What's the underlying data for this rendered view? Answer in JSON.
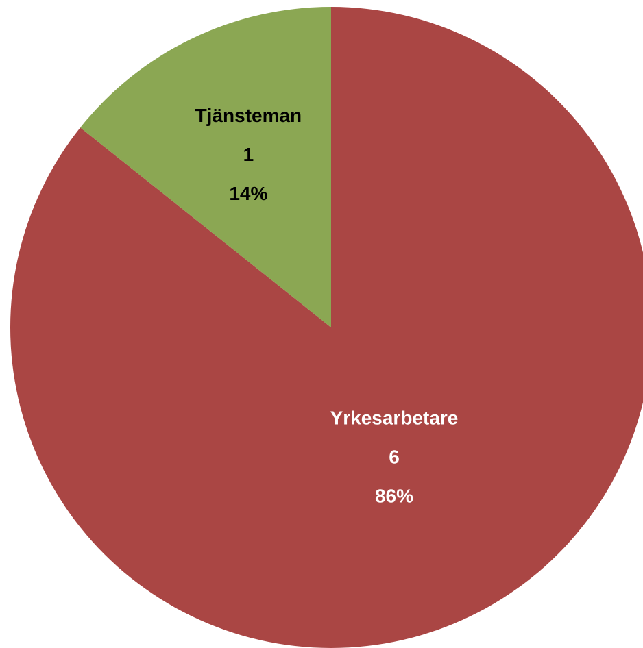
{
  "chart_data": {
    "type": "pie",
    "categories": [
      "Yrkesarbetare",
      "Tjänsteman"
    ],
    "values": [
      6,
      1
    ],
    "percent_labels": [
      "86%",
      "14%"
    ],
    "colors": [
      "#aa4644",
      "#8ba753"
    ]
  }
}
